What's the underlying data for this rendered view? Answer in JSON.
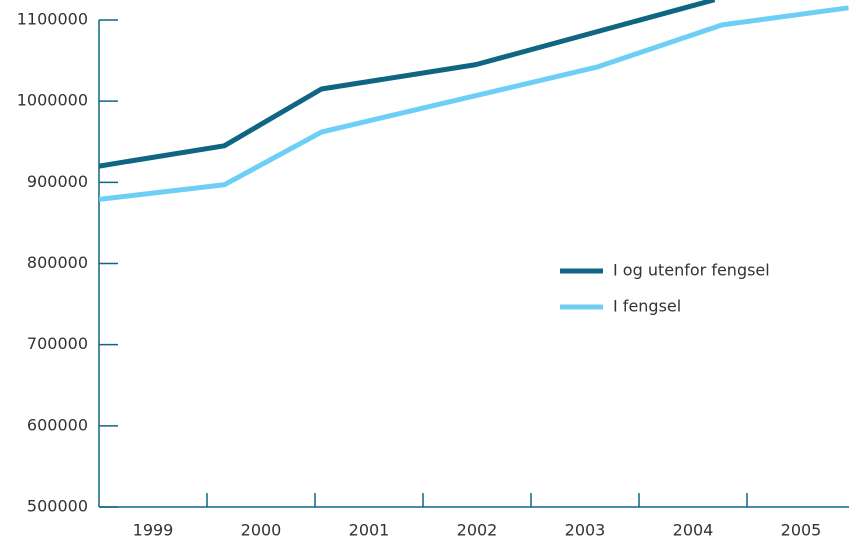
{
  "chart_data": {
    "type": "line",
    "series": [
      {
        "name": "I og utenfor fengsel",
        "color": "#0e6683",
        "x": [
          1999.0,
          2000.16,
          2001.06,
          2002.49,
          2004.7
        ],
        "values": [
          920000,
          945000,
          1015000,
          1045000,
          1125000
        ]
      },
      {
        "name": "I fengsel",
        "color": "#6dcff6",
        "x": [
          1999.0,
          2000.16,
          2001.06,
          2003.61,
          2004.77,
          2005.94
        ],
        "values": [
          879000,
          897000,
          962000,
          1042000,
          1094000,
          1115000
        ]
      }
    ],
    "xlim": [
      1999,
      2006
    ],
    "xticks": [
      {
        "value": 1999.5,
        "label": "1999"
      },
      {
        "value": 2000.5,
        "label": "2000"
      },
      {
        "value": 2001.5,
        "label": "2001"
      },
      {
        "value": 2002.5,
        "label": "2002"
      },
      {
        "value": 2003.5,
        "label": "2003"
      },
      {
        "value": 2004.5,
        "label": "2004"
      },
      {
        "value": 2005.5,
        "label": "2005"
      }
    ],
    "ylim": [
      500000,
      1100000
    ],
    "yticks": [
      500000,
      600000,
      700000,
      800000,
      900000,
      1000000,
      1100000
    ],
    "legend": "right",
    "grid": false
  }
}
